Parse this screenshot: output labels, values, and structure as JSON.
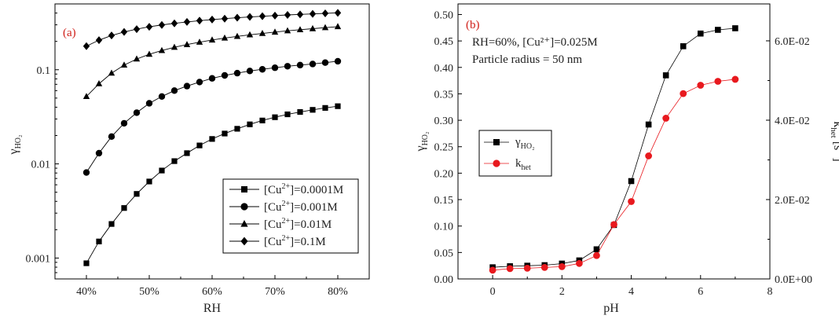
{
  "chart_data": [
    {
      "type": "line",
      "panel_label": "(a)",
      "xlabel": "RH",
      "ylabel_main": "γ",
      "ylabel_sub": "HO₂",
      "x_scale": "linear",
      "y_scale": "log",
      "xlim": [
        35,
        85
      ],
      "ylim": [
        0.0006,
        0.5
      ],
      "x_ticks": [
        {
          "value": 40,
          "label": "40%"
        },
        {
          "value": 50,
          "label": "50%"
        },
        {
          "value": 60,
          "label": "60%"
        },
        {
          "value": 70,
          "label": "70%"
        },
        {
          "value": 80,
          "label": "80%"
        }
      ],
      "y_ticks": [
        {
          "value": 0.001,
          "label": "0.001"
        },
        {
          "value": 0.01,
          "label": "0.01"
        },
        {
          "value": 0.1,
          "label": "0.1"
        }
      ],
      "legend_position": "bottom-right",
      "color": "#000000",
      "x": [
        40,
        42,
        44,
        46,
        48,
        50,
        52,
        54,
        56,
        58,
        60,
        62,
        64,
        66,
        68,
        70,
        72,
        74,
        76,
        78,
        80
      ],
      "series": [
        {
          "marker": "square",
          "legend": {
            "pre": "[Cu",
            "sup": "2+",
            "post": "]=0.0001M"
          },
          "values": [
            0.00088,
            0.0015,
            0.0023,
            0.0034,
            0.0048,
            0.0065,
            0.0085,
            0.0107,
            0.013,
            0.0157,
            0.0184,
            0.021,
            0.0236,
            0.0263,
            0.0289,
            0.0313,
            0.0336,
            0.0356,
            0.0375,
            0.0393,
            0.041
          ]
        },
        {
          "marker": "circle",
          "legend": {
            "pre": "[Cu",
            "sup": "2+",
            "post": "]=0.001M"
          },
          "values": [
            0.0081,
            0.013,
            0.0195,
            0.027,
            0.035,
            0.044,
            0.052,
            0.06,
            0.067,
            0.074,
            0.081,
            0.087,
            0.092,
            0.097,
            0.101,
            0.105,
            0.109,
            0.112,
            0.115,
            0.119,
            0.123
          ]
        },
        {
          "marker": "triangle",
          "legend": {
            "pre": "[Cu",
            "sup": "2+",
            "post": "]=0.01M"
          },
          "values": [
            0.052,
            0.071,
            0.092,
            0.112,
            0.13,
            0.146,
            0.16,
            0.173,
            0.185,
            0.196,
            0.207,
            0.217,
            0.226,
            0.235,
            0.243,
            0.251,
            0.259,
            0.266,
            0.273,
            0.28,
            0.287
          ]
        },
        {
          "marker": "diamond",
          "legend": {
            "pre": "[Cu",
            "sup": "2+",
            "post": "]=0.1M"
          },
          "values": [
            0.178,
            0.206,
            0.231,
            0.252,
            0.27,
            0.286,
            0.299,
            0.311,
            0.322,
            0.332,
            0.341,
            0.349,
            0.357,
            0.364,
            0.37,
            0.376,
            0.382,
            0.387,
            0.392,
            0.397,
            0.402
          ]
        }
      ]
    },
    {
      "type": "line",
      "panel_label": "(b)",
      "xlabel": "pH",
      "ylabel_main": "γ",
      "ylabel_sub": "HO₂",
      "ylabel_right": {
        "main": "k",
        "sub": "het",
        "post": " [s",
        "sup": "-1",
        "end": "]"
      },
      "annotations": [
        "RH=60%, [Cu²⁺]=0.025M",
        "Particle radius = 50 nm"
      ],
      "xlim": [
        -1,
        8
      ],
      "ylim": [
        0,
        0.52
      ],
      "y2lim": [
        0,
        0.0693
      ],
      "x_ticks": [
        {
          "value": 0,
          "label": "0"
        },
        {
          "value": 2,
          "label": "2"
        },
        {
          "value": 4,
          "label": "4"
        },
        {
          "value": 6,
          "label": "6"
        },
        {
          "value": 8,
          "label": "8"
        }
      ],
      "y_ticks": [
        {
          "value": 0.0,
          "label": "0.00"
        },
        {
          "value": 0.05,
          "label": "0.05"
        },
        {
          "value": 0.1,
          "label": "0.10"
        },
        {
          "value": 0.15,
          "label": "0.15"
        },
        {
          "value": 0.2,
          "label": "0.20"
        },
        {
          "value": 0.25,
          "label": "0.25"
        },
        {
          "value": 0.3,
          "label": "0.30"
        },
        {
          "value": 0.35,
          "label": "0.35"
        },
        {
          "value": 0.4,
          "label": "0.40"
        },
        {
          "value": 0.45,
          "label": "0.45"
        },
        {
          "value": 0.5,
          "label": "0.50"
        }
      ],
      "y2_ticks": [
        {
          "value": 0.0,
          "label": "0.0E+00"
        },
        {
          "value": 0.02,
          "label": "2.0E-02"
        },
        {
          "value": 0.04,
          "label": "4.0E-02"
        },
        {
          "value": 0.06,
          "label": "6.0E-02"
        }
      ],
      "legend_position": "middle-left",
      "x": [
        0,
        0.5,
        1,
        1.5,
        2,
        2.5,
        3,
        3.5,
        4,
        4.5,
        5,
        5.5,
        6,
        6.5,
        7
      ],
      "series": [
        {
          "marker": "square",
          "color": "#000000",
          "axis": "left",
          "legend": {
            "main": "γ",
            "sub": "HO₂"
          },
          "values": [
            0.022,
            0.024,
            0.025,
            0.026,
            0.029,
            0.035,
            0.056,
            0.102,
            0.185,
            0.292,
            0.385,
            0.44,
            0.464,
            0.471,
            0.474
          ]
        },
        {
          "marker": "circle",
          "color": "#e8191e",
          "axis": "right",
          "legend": {
            "main": "k",
            "sub": "het"
          },
          "values": [
            0.0022,
            0.0026,
            0.0027,
            0.0029,
            0.0031,
            0.0039,
            0.0059,
            0.0137,
            0.0195,
            0.031,
            0.0405,
            0.0467,
            0.0488,
            0.0498,
            0.0503
          ]
        }
      ]
    }
  ]
}
